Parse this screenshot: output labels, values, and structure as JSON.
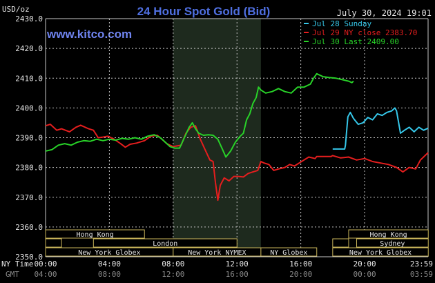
{
  "header": {
    "unit": "USD/oz",
    "title": "24 Hour Spot Gold (Bid)",
    "timestamp": "July 30, 2024 19:01",
    "source": "www.kitco.com"
  },
  "colors": {
    "background": "#000000",
    "grid": "#c8c8c8",
    "title": "#4f6fe0",
    "source": "#6f84f0",
    "nymex_shade": "#1e2a1e",
    "session_box": "#c8b45a",
    "session_text": "#e6e6e6"
  },
  "time_axis": {
    "ny_label": "NY Time",
    "gmt_label": "GMT",
    "ny_ticks": [
      "00:00",
      "04:00",
      "08:00",
      "12:00",
      "16:00",
      "20:00",
      "23:59"
    ],
    "gmt_ticks": [
      "04:00",
      "08:00",
      "12:00",
      "16:00",
      "20:00",
      "00:00",
      "03:59"
    ]
  },
  "sessions": [
    {
      "label": "Hong Kong",
      "start": 0.0,
      "end": 6.2,
      "row": 0
    },
    {
      "label": "",
      "start": 0.0,
      "end": 1.0,
      "row": 1
    },
    {
      "label": "London",
      "start": 3.0,
      "end": 12.0,
      "row": 1
    },
    {
      "label": "New York Globex",
      "start": 0.0,
      "end": 8.0,
      "row": 2
    },
    {
      "label": "New York NYMEX",
      "start": 8.0,
      "end": 13.5,
      "row": 2
    },
    {
      "label": "NY Globex",
      "start": 13.5,
      "end": 17.0,
      "row": 2
    },
    {
      "label": "Hong Kong",
      "start": 19.0,
      "end": 23.99,
      "row": 0
    },
    {
      "label": "",
      "start": 18.0,
      "end": 19.0,
      "row": 1
    },
    {
      "label": "Sydney",
      "start": 19.5,
      "end": 23.99,
      "row": 1
    },
    {
      "label": "New York Globex",
      "start": 18.0,
      "end": 23.99,
      "row": 2
    }
  ],
  "chart_data": {
    "type": "line",
    "title": "24 Hour Spot Gold (Bid)",
    "ylabel": "USD/oz",
    "ylim": [
      2350,
      2430
    ],
    "xlim": [
      0,
      23.98
    ],
    "yticks": [
      2350,
      2360,
      2370,
      2380,
      2390,
      2400,
      2410,
      2420,
      2430
    ],
    "ytick_labels": [
      "2350.0",
      "2360.0",
      "2370.0",
      "2380.0",
      "2390.0",
      "2400.0",
      "2410.0",
      "2420.0",
      "2430.0"
    ],
    "grid": true,
    "legend_position": "top-right",
    "nymex_session": [
      8.0,
      13.5
    ],
    "series": [
      {
        "name": "Jul 28 Sunday",
        "color": "#36c8ea",
        "points": [
          [
            18.0,
            2386.2
          ],
          [
            18.75,
            2386.2
          ],
          [
            18.8,
            2387.5
          ],
          [
            18.95,
            2397.0
          ],
          [
            19.1,
            2398.5
          ],
          [
            19.3,
            2396.5
          ],
          [
            19.6,
            2394.5
          ],
          [
            19.9,
            2395.0
          ],
          [
            20.2,
            2396.8
          ],
          [
            20.5,
            2396.0
          ],
          [
            20.8,
            2398.0
          ],
          [
            21.1,
            2397.5
          ],
          [
            21.4,
            2398.5
          ],
          [
            21.7,
            2399.0
          ],
          [
            21.9,
            2400.0
          ],
          [
            22.0,
            2399.0
          ],
          [
            22.1,
            2396.0
          ],
          [
            22.25,
            2391.5
          ],
          [
            22.5,
            2392.5
          ],
          [
            22.8,
            2393.5
          ],
          [
            23.1,
            2392.0
          ],
          [
            23.4,
            2393.5
          ],
          [
            23.7,
            2392.5
          ],
          [
            23.98,
            2393.2
          ]
        ]
      },
      {
        "name": "Jul 29 NY close 2383.70",
        "color": "#e61e1e",
        "points": [
          [
            0.0,
            2394.0
          ],
          [
            0.3,
            2394.5
          ],
          [
            0.7,
            2392.5
          ],
          [
            1.0,
            2393.0
          ],
          [
            1.5,
            2392.0
          ],
          [
            1.9,
            2393.5
          ],
          [
            2.2,
            2394.2
          ],
          [
            2.7,
            2393.0
          ],
          [
            3.0,
            2392.5
          ],
          [
            3.3,
            2390.0
          ],
          [
            3.6,
            2390.2
          ],
          [
            3.9,
            2390.5
          ],
          [
            4.3,
            2389.5
          ],
          [
            4.7,
            2388.0
          ],
          [
            5.0,
            2386.8
          ],
          [
            5.3,
            2387.8
          ],
          [
            5.7,
            2388.2
          ],
          [
            6.2,
            2389.0
          ],
          [
            6.6,
            2390.5
          ],
          [
            7.0,
            2390.8
          ],
          [
            7.3,
            2389.5
          ],
          [
            7.6,
            2388.0
          ],
          [
            8.0,
            2387.0
          ],
          [
            8.5,
            2387.5
          ],
          [
            8.8,
            2391.5
          ],
          [
            9.1,
            2393.5
          ],
          [
            9.4,
            2394.0
          ],
          [
            9.7,
            2389.5
          ],
          [
            10.0,
            2386.0
          ],
          [
            10.3,
            2382.5
          ],
          [
            10.5,
            2382.0
          ],
          [
            10.65,
            2375.0
          ],
          [
            10.8,
            2369.0
          ],
          [
            10.95,
            2374.0
          ],
          [
            11.2,
            2376.5
          ],
          [
            11.5,
            2375.5
          ],
          [
            11.8,
            2377.0
          ],
          [
            12.1,
            2377.0
          ],
          [
            12.4,
            2376.8
          ],
          [
            12.7,
            2378.0
          ],
          [
            13.0,
            2378.5
          ],
          [
            13.3,
            2379.0
          ],
          [
            13.5,
            2382.0
          ],
          [
            13.7,
            2381.5
          ],
          [
            14.0,
            2381.0
          ],
          [
            14.3,
            2379.0
          ],
          [
            14.6,
            2379.5
          ],
          [
            15.0,
            2380.0
          ],
          [
            15.3,
            2381.0
          ],
          [
            15.6,
            2380.5
          ],
          [
            15.9,
            2381.5
          ],
          [
            16.2,
            2382.5
          ],
          [
            16.5,
            2383.5
          ],
          [
            16.9,
            2383.0
          ],
          [
            17.0,
            2383.7
          ],
          [
            17.5,
            2383.7
          ],
          [
            17.9,
            2383.7
          ],
          [
            18.0,
            2384.0
          ],
          [
            18.5,
            2383.2
          ],
          [
            19.0,
            2383.5
          ],
          [
            19.5,
            2382.5
          ],
          [
            20.0,
            2383.0
          ],
          [
            20.5,
            2382.0
          ],
          [
            21.0,
            2381.5
          ],
          [
            21.5,
            2381.0
          ],
          [
            22.0,
            2380.0
          ],
          [
            22.4,
            2378.5
          ],
          [
            22.8,
            2380.0
          ],
          [
            23.2,
            2379.5
          ],
          [
            23.5,
            2382.5
          ],
          [
            23.98,
            2385.0
          ]
        ]
      },
      {
        "name": "Jul 30 Last 2409.00",
        "color": "#28d228",
        "points": [
          [
            0.0,
            2385.5
          ],
          [
            0.4,
            2386.0
          ],
          [
            0.8,
            2387.5
          ],
          [
            1.2,
            2388.0
          ],
          [
            1.6,
            2387.5
          ],
          [
            2.0,
            2388.5
          ],
          [
            2.4,
            2389.0
          ],
          [
            2.8,
            2388.8
          ],
          [
            3.2,
            2389.5
          ],
          [
            3.6,
            2389.0
          ],
          [
            4.0,
            2389.5
          ],
          [
            4.4,
            2389.2
          ],
          [
            4.8,
            2389.8
          ],
          [
            5.2,
            2389.5
          ],
          [
            5.6,
            2390.0
          ],
          [
            6.0,
            2389.5
          ],
          [
            6.4,
            2390.5
          ],
          [
            6.8,
            2391.0
          ],
          [
            7.2,
            2390.0
          ],
          [
            7.5,
            2388.5
          ],
          [
            7.8,
            2387.0
          ],
          [
            8.1,
            2386.5
          ],
          [
            8.4,
            2386.5
          ],
          [
            8.7,
            2390.0
          ],
          [
            9.0,
            2393.5
          ],
          [
            9.2,
            2395.0
          ],
          [
            9.4,
            2393.0
          ],
          [
            9.6,
            2391.5
          ],
          [
            9.9,
            2390.8
          ],
          [
            10.2,
            2391.0
          ],
          [
            10.5,
            2390.8
          ],
          [
            10.8,
            2389.5
          ],
          [
            11.1,
            2386.0
          ],
          [
            11.3,
            2383.5
          ],
          [
            11.6,
            2385.5
          ],
          [
            11.9,
            2388.5
          ],
          [
            12.2,
            2390.5
          ],
          [
            12.4,
            2391.5
          ],
          [
            12.6,
            2396.0
          ],
          [
            12.8,
            2398.0
          ],
          [
            13.0,
            2401.5
          ],
          [
            13.2,
            2403.5
          ],
          [
            13.35,
            2407.0
          ],
          [
            13.5,
            2406.0
          ],
          [
            13.8,
            2405.0
          ],
          [
            14.2,
            2405.5
          ],
          [
            14.6,
            2406.5
          ],
          [
            15.0,
            2405.5
          ],
          [
            15.4,
            2405.0
          ],
          [
            15.8,
            2407.0
          ],
          [
            16.2,
            2407.0
          ],
          [
            16.6,
            2408.0
          ],
          [
            16.8,
            2410.0
          ],
          [
            17.0,
            2411.5
          ],
          [
            17.4,
            2410.5
          ],
          [
            17.8,
            2410.2
          ],
          [
            18.2,
            2410.0
          ],
          [
            18.6,
            2409.5
          ],
          [
            19.0,
            2409.0
          ],
          [
            19.2,
            2408.5
          ],
          [
            19.3,
            2409.0
          ]
        ]
      }
    ]
  }
}
